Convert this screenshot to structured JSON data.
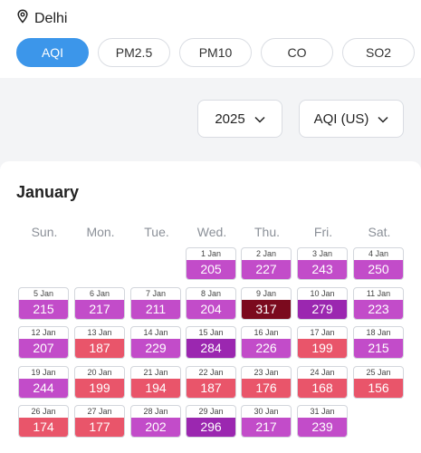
{
  "location": {
    "name": "Delhi",
    "icon": "map-pin-icon"
  },
  "tabs": [
    {
      "label": "AQI",
      "active": true
    },
    {
      "label": "PM2.5",
      "active": false
    },
    {
      "label": "PM10",
      "active": false
    },
    {
      "label": "CO",
      "active": false
    },
    {
      "label": "SO2",
      "active": false
    }
  ],
  "filters": {
    "year": "2025",
    "metric": "AQI (US)"
  },
  "calendar": {
    "month": "January",
    "weekdays": [
      "Sun.",
      "Mon.",
      "Tue.",
      "Wed.",
      "Thu.",
      "Fri.",
      "Sat."
    ],
    "colors": {
      "red": "#e9556a",
      "magenta": "#c24cc9",
      "purple": "#9b27b0",
      "maroon": "#7b0a1e"
    },
    "days": [
      {
        "date": "1 Jan",
        "value": "205",
        "color": "magenta"
      },
      {
        "date": "2 Jan",
        "value": "227",
        "color": "magenta"
      },
      {
        "date": "3 Jan",
        "value": "243",
        "color": "magenta"
      },
      {
        "date": "4 Jan",
        "value": "250",
        "color": "magenta"
      },
      {
        "date": "5 Jan",
        "value": "215",
        "color": "magenta"
      },
      {
        "date": "6 Jan",
        "value": "217",
        "color": "magenta"
      },
      {
        "date": "7 Jan",
        "value": "211",
        "color": "magenta"
      },
      {
        "date": "8 Jan",
        "value": "204",
        "color": "magenta"
      },
      {
        "date": "9 Jan",
        "value": "317",
        "color": "maroon"
      },
      {
        "date": "10 Jan",
        "value": "279",
        "color": "purple"
      },
      {
        "date": "11 Jan",
        "value": "223",
        "color": "magenta"
      },
      {
        "date": "12 Jan",
        "value": "207",
        "color": "magenta"
      },
      {
        "date": "13 Jan",
        "value": "187",
        "color": "red"
      },
      {
        "date": "14 Jan",
        "value": "229",
        "color": "magenta"
      },
      {
        "date": "15 Jan",
        "value": "284",
        "color": "purple"
      },
      {
        "date": "16 Jan",
        "value": "226",
        "color": "magenta"
      },
      {
        "date": "17 Jan",
        "value": "199",
        "color": "red"
      },
      {
        "date": "18 Jan",
        "value": "215",
        "color": "magenta"
      },
      {
        "date": "19 Jan",
        "value": "244",
        "color": "magenta"
      },
      {
        "date": "20 Jan",
        "value": "199",
        "color": "red"
      },
      {
        "date": "21 Jan",
        "value": "194",
        "color": "red"
      },
      {
        "date": "22 Jan",
        "value": "187",
        "color": "red"
      },
      {
        "date": "23 Jan",
        "value": "176",
        "color": "red"
      },
      {
        "date": "24 Jan",
        "value": "168",
        "color": "red"
      },
      {
        "date": "25 Jan",
        "value": "156",
        "color": "red"
      },
      {
        "date": "26 Jan",
        "value": "174",
        "color": "red"
      },
      {
        "date": "27 Jan",
        "value": "177",
        "color": "red"
      },
      {
        "date": "28 Jan",
        "value": "202",
        "color": "magenta"
      },
      {
        "date": "29 Jan",
        "value": "296",
        "color": "purple"
      },
      {
        "date": "30 Jan",
        "value": "217",
        "color": "magenta"
      },
      {
        "date": "31 Jan",
        "value": "239",
        "color": "magenta"
      }
    ]
  }
}
